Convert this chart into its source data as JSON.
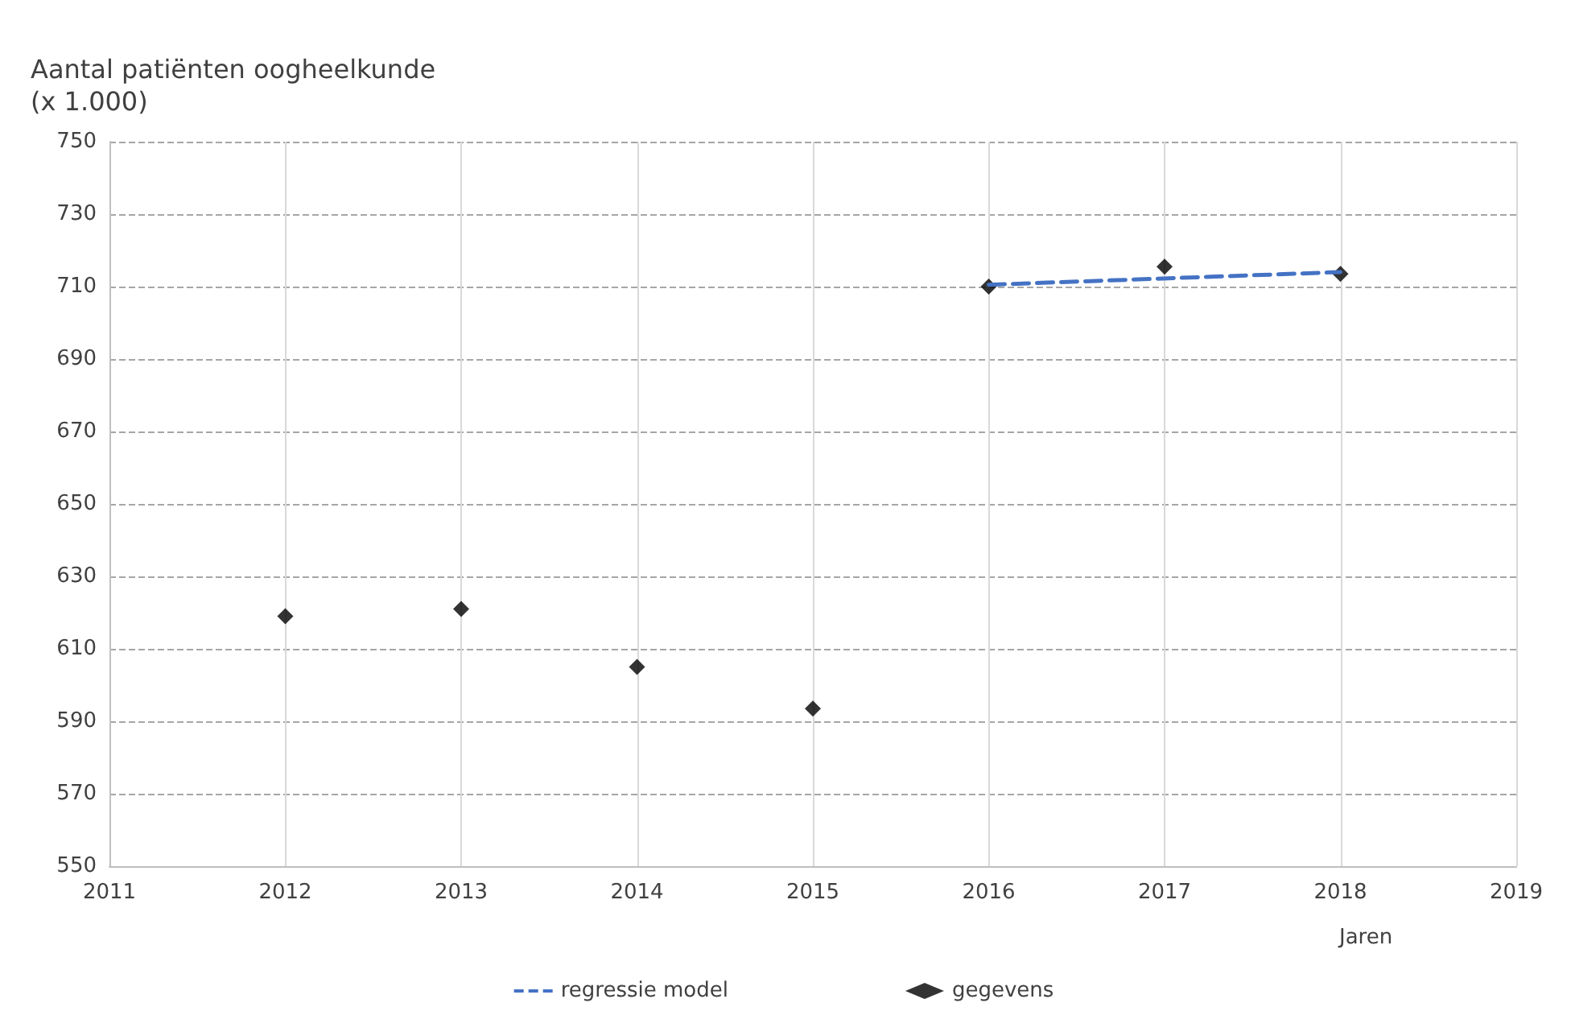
{
  "chart_data": {
    "type": "scatter",
    "ylabel": "Aantal patiënten oogheelkunde\n(x 1.000)",
    "xlabel": "Jaren",
    "xlim": [
      2011,
      2019
    ],
    "xticks": [
      2011,
      2012,
      2013,
      2014,
      2015,
      2016,
      2017,
      2018,
      2019
    ],
    "ylim": [
      550,
      750
    ],
    "yticks": [
      550,
      570,
      590,
      610,
      630,
      650,
      670,
      690,
      710,
      730,
      750
    ],
    "grid": true,
    "legend": "bottom",
    "series": [
      {
        "name": "regressie model",
        "type": "line",
        "color": "#4472c4",
        "line_style": "dashed",
        "marker": "none",
        "x": [
          2016,
          2018
        ],
        "values": [
          710.5,
          714
        ]
      },
      {
        "name": "gegevens",
        "color": "#000000",
        "marker": "diamond",
        "x": [
          2012,
          2013,
          2014,
          2015,
          2016,
          2017,
          2018
        ],
        "values": [
          619,
          621,
          605,
          593.5,
          710,
          715.5,
          713.5
        ]
      }
    ]
  }
}
